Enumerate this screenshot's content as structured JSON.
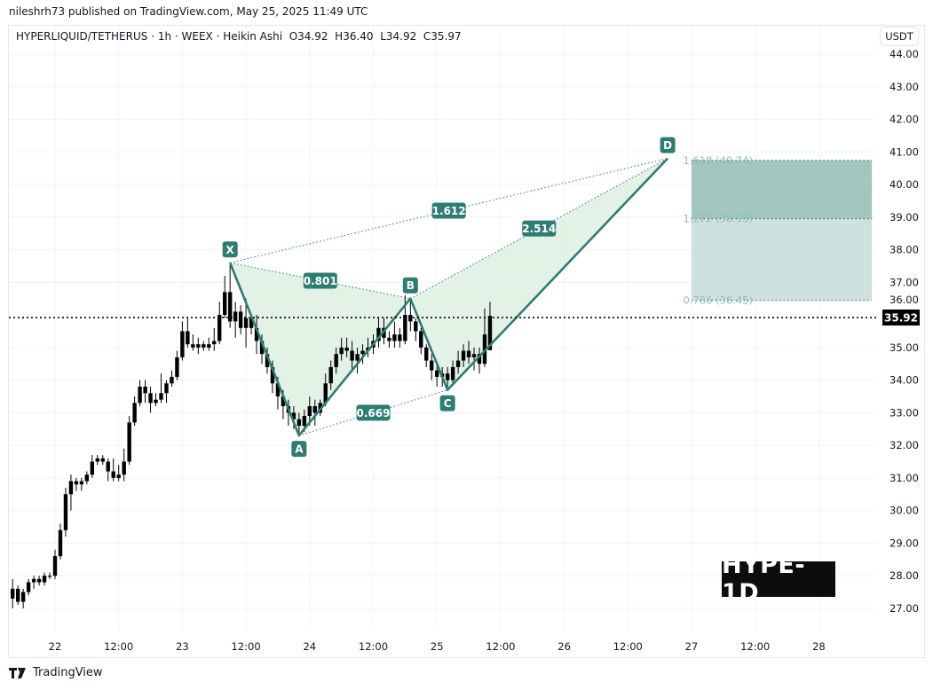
{
  "attribution": "nileshrh73 published on TradingView.com, May 25, 2025 11:49 UTC",
  "legend": {
    "symbol": "HYPERLIQUID/TETHERUS",
    "interval": "1h",
    "exchange": "WEEX",
    "style": "Heikin Ashi",
    "open": "O34.92",
    "high": "H36.40",
    "low": "L34.92",
    "close": "C35.97"
  },
  "currency_button": "USDT",
  "watermark_label": "HYPE-1D",
  "footer_brand": "TradingView",
  "colors": {
    "pattern": "#2e7d75",
    "pattern_fill": "#ddf0e1",
    "zone_upper": "#a3c6bf",
    "zone_lower": "#cfe1df",
    "candle": "#000000",
    "fib_text": "#8fbfb2"
  },
  "chart_data": {
    "type": "candlestick",
    "x_start": "2025-05-21T16:00:00Z",
    "interval": "1h",
    "ylim": [
      26.5,
      44.2
    ],
    "grid": true,
    "y_ticks": [
      "44.00",
      "43.00",
      "42.00",
      "41.00",
      "40.00",
      "39.00",
      "38.00",
      "37.00",
      "36.00",
      "35.00",
      "34.00",
      "33.00",
      "32.00",
      "31.00",
      "30.00",
      "29.00",
      "28.00",
      "27.00"
    ],
    "x_ticks": [
      {
        "label": "22",
        "time": "2025-05-22T00:00:00Z"
      },
      {
        "label": "12:00",
        "time": "2025-05-22T12:00:00Z"
      },
      {
        "label": "23",
        "time": "2025-05-23T00:00:00Z"
      },
      {
        "label": "12:00",
        "time": "2025-05-23T12:00:00Z"
      },
      {
        "label": "24",
        "time": "2025-05-24T00:00:00Z"
      },
      {
        "label": "12:00",
        "time": "2025-05-24T12:00:00Z"
      },
      {
        "label": "25",
        "time": "2025-05-25T00:00:00Z"
      },
      {
        "label": "12:00",
        "time": "2025-05-25T12:00:00Z"
      },
      {
        "label": "26",
        "time": "2025-05-26T00:00:00Z"
      },
      {
        "label": "12:00",
        "time": "2025-05-26T12:00:00Z"
      },
      {
        "label": "27",
        "time": "2025-05-27T00:00:00Z"
      },
      {
        "label": "12:00",
        "time": "2025-05-27T12:00:00Z"
      },
      {
        "label": "28",
        "time": "2025-05-28T00:00:00Z"
      }
    ],
    "last_price": "35.92",
    "candles": [
      [
        27.3,
        27.9,
        27.0,
        27.6
      ],
      [
        27.6,
        27.7,
        27.1,
        27.2
      ],
      [
        27.2,
        27.6,
        27.0,
        27.5
      ],
      [
        27.5,
        27.9,
        27.4,
        27.8
      ],
      [
        27.8,
        28.0,
        27.6,
        27.9
      ],
      [
        27.9,
        28.0,
        27.7,
        27.8
      ],
      [
        27.8,
        28.1,
        27.7,
        28.0
      ],
      [
        28.0,
        28.1,
        27.9,
        28.0
      ],
      [
        28.0,
        28.8,
        27.9,
        28.6
      ],
      [
        28.6,
        29.6,
        28.5,
        29.4
      ],
      [
        29.4,
        30.7,
        29.2,
        30.5
      ],
      [
        30.5,
        31.1,
        30.0,
        30.9
      ],
      [
        30.9,
        31.0,
        30.6,
        30.8
      ],
      [
        30.8,
        31.0,
        30.6,
        30.9
      ],
      [
        30.9,
        31.2,
        30.8,
        31.1
      ],
      [
        31.1,
        31.7,
        31.0,
        31.5
      ],
      [
        31.5,
        31.7,
        31.4,
        31.6
      ],
      [
        31.6,
        31.7,
        31.4,
        31.5
      ],
      [
        31.5,
        31.6,
        30.9,
        31.2
      ],
      [
        31.2,
        31.6,
        30.9,
        31.0
      ],
      [
        31.0,
        31.4,
        30.9,
        31.1
      ],
      [
        31.1,
        31.9,
        30.9,
        31.5
      ],
      [
        31.5,
        32.9,
        31.4,
        32.7
      ],
      [
        32.7,
        33.5,
        32.6,
        33.3
      ],
      [
        33.3,
        34.0,
        33.2,
        33.8
      ],
      [
        33.8,
        34.0,
        33.3,
        33.6
      ],
      [
        33.6,
        33.8,
        33.0,
        33.3
      ],
      [
        33.3,
        33.6,
        33.2,
        33.4
      ],
      [
        33.4,
        34.2,
        33.3,
        33.6
      ],
      [
        33.6,
        34.0,
        33.3,
        33.9
      ],
      [
        33.9,
        34.3,
        33.8,
        34.1
      ],
      [
        34.1,
        34.9,
        34.0,
        34.7
      ],
      [
        34.7,
        35.8,
        34.6,
        35.5
      ],
      [
        35.5,
        35.9,
        35.0,
        35.1
      ],
      [
        35.1,
        35.4,
        34.9,
        35.0
      ],
      [
        35.0,
        35.3,
        34.8,
        35.1
      ],
      [
        35.1,
        35.2,
        34.9,
        35.0
      ],
      [
        35.0,
        35.3,
        34.9,
        35.1
      ],
      [
        35.1,
        35.6,
        34.9,
        35.2
      ],
      [
        35.2,
        36.4,
        35.1,
        36.0
      ],
      [
        36.0,
        37.2,
        35.9,
        36.7
      ],
      [
        36.7,
        37.6,
        35.6,
        35.8
      ],
      [
        35.8,
        36.4,
        35.3,
        36.1
      ],
      [
        36.1,
        36.3,
        35.4,
        35.6
      ],
      [
        35.6,
        36.5,
        35.0,
        35.9
      ],
      [
        35.9,
        36.0,
        35.4,
        35.6
      ],
      [
        35.6,
        36.0,
        34.8,
        35.2
      ],
      [
        35.2,
        35.4,
        34.5,
        34.8
      ],
      [
        34.8,
        35.0,
        34.2,
        34.4
      ],
      [
        34.4,
        34.6,
        33.6,
        33.9
      ],
      [
        33.9,
        34.1,
        33.1,
        33.5
      ],
      [
        33.5,
        33.7,
        32.8,
        33.2
      ],
      [
        33.2,
        33.4,
        32.6,
        33.0
      ],
      [
        33.0,
        33.2,
        32.5,
        32.8
      ],
      [
        32.8,
        33.0,
        32.3,
        32.6
      ],
      [
        32.6,
        33.1,
        32.4,
        32.9
      ],
      [
        32.9,
        33.5,
        32.6,
        33.2
      ],
      [
        33.2,
        33.4,
        32.6,
        33.0
      ],
      [
        33.0,
        33.4,
        32.9,
        33.3
      ],
      [
        33.3,
        34.2,
        33.2,
        33.9
      ],
      [
        33.9,
        34.6,
        33.7,
        34.4
      ],
      [
        34.4,
        35.0,
        34.2,
        34.8
      ],
      [
        34.8,
        35.3,
        34.6,
        35.0
      ],
      [
        35.0,
        35.3,
        34.7,
        34.9
      ],
      [
        34.9,
        35.2,
        34.3,
        34.6
      ],
      [
        34.6,
        35.0,
        34.2,
        34.8
      ],
      [
        34.8,
        35.1,
        34.5,
        34.9
      ],
      [
        34.9,
        35.3,
        34.7,
        35.0
      ],
      [
        35.0,
        35.4,
        34.8,
        35.2
      ],
      [
        35.2,
        35.9,
        35.0,
        35.6
      ],
      [
        35.6,
        35.9,
        35.1,
        35.3
      ],
      [
        35.3,
        35.5,
        35.0,
        35.2
      ],
      [
        35.2,
        35.8,
        35.0,
        35.4
      ],
      [
        35.4,
        35.6,
        35.0,
        35.2
      ],
      [
        35.2,
        36.6,
        35.1,
        36.0
      ],
      [
        36.0,
        36.5,
        35.5,
        35.8
      ],
      [
        35.8,
        35.9,
        35.2,
        35.5
      ],
      [
        35.5,
        35.6,
        34.8,
        35.0
      ],
      [
        35.0,
        35.1,
        34.4,
        34.6
      ],
      [
        34.6,
        34.8,
        34.0,
        34.3
      ],
      [
        34.3,
        34.5,
        33.8,
        34.1
      ],
      [
        34.1,
        34.4,
        33.8,
        34.2
      ],
      [
        34.2,
        34.4,
        33.7,
        34.0
      ],
      [
        34.0,
        34.6,
        33.9,
        34.4
      ],
      [
        34.4,
        34.9,
        34.2,
        34.6
      ],
      [
        34.6,
        35.1,
        34.4,
        34.9
      ],
      [
        34.9,
        35.2,
        34.5,
        34.7
      ],
      [
        34.7,
        35.0,
        34.3,
        34.8
      ],
      [
        34.8,
        35.0,
        34.2,
        34.5
      ],
      [
        34.5,
        36.2,
        34.4,
        35.4
      ],
      [
        34.92,
        36.4,
        34.92,
        35.97
      ]
    ],
    "harmonic_pattern": {
      "points": [
        {
          "label": "X",
          "time": "2025-05-23T09:00:00Z",
          "price": 37.6
        },
        {
          "label": "A",
          "time": "2025-05-23T22:00:00Z",
          "price": 32.3
        },
        {
          "label": "B",
          "time": "2025-05-24T19:00:00Z",
          "price": 36.5
        },
        {
          "label": "C",
          "time": "2025-05-25T02:00:00Z",
          "price": 33.7
        },
        {
          "label": "D",
          "time": "2025-05-26T19:30:00Z",
          "price": 40.8
        }
      ],
      "ratios": [
        {
          "from": "X",
          "to": "B",
          "value": "0.801"
        },
        {
          "from": "A",
          "to": "C",
          "value": "0.669"
        },
        {
          "from": "X",
          "to": "D",
          "value": "1.612"
        },
        {
          "from": "B",
          "to": "D",
          "value": "2.514"
        }
      ]
    },
    "fib_zone": {
      "time_start": "2025-05-27T00:00:00Z",
      "time_end": "2025-05-28T10:00:00Z",
      "levels": [
        {
          "label": "1.618 (40.74)",
          "price": 40.74
        },
        {
          "label": "1.272 (38.95)",
          "price": 38.95
        },
        {
          "label": "0.786 (36.45)",
          "price": 36.45
        }
      ]
    }
  }
}
